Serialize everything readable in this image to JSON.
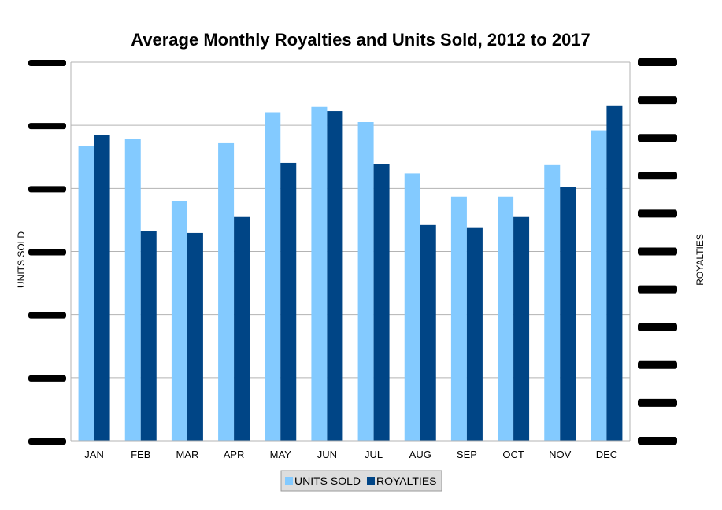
{
  "chart_data": {
    "type": "bar",
    "title": "Average Monthly Royalties and Units Sold, 2012 to 2017",
    "ylabel": "UNITS SOLD",
    "y2label": "ROYALTIES",
    "categories": [
      "JAN",
      "FEB",
      "MAR",
      "APR",
      "MAY",
      "JUN",
      "JUL",
      "AUG",
      "SEP",
      "OCT",
      "NOV",
      "DEC"
    ],
    "series": [
      {
        "name": "UNITS SOLD",
        "color": "#83caff",
        "axis": "left",
        "values": [
          0.779,
          0.797,
          0.634,
          0.786,
          0.868,
          0.882,
          0.842,
          0.706,
          0.645,
          0.645,
          0.728,
          0.82
        ]
      },
      {
        "name": "ROYALTIES",
        "color": "#004586",
        "axis": "right",
        "values": [
          0.808,
          0.553,
          0.549,
          0.591,
          0.734,
          0.871,
          0.73,
          0.57,
          0.562,
          0.591,
          0.67,
          0.884
        ]
      }
    ],
    "value_scale": "fraction of axis range (axis tick labels are redacted in the original)",
    "left_axis_ticks": 6,
    "right_axis_ticks": 10,
    "ylim": [
      0,
      1
    ],
    "grid": true,
    "legend_position": "bottom",
    "tick_labels_redacted": true
  }
}
